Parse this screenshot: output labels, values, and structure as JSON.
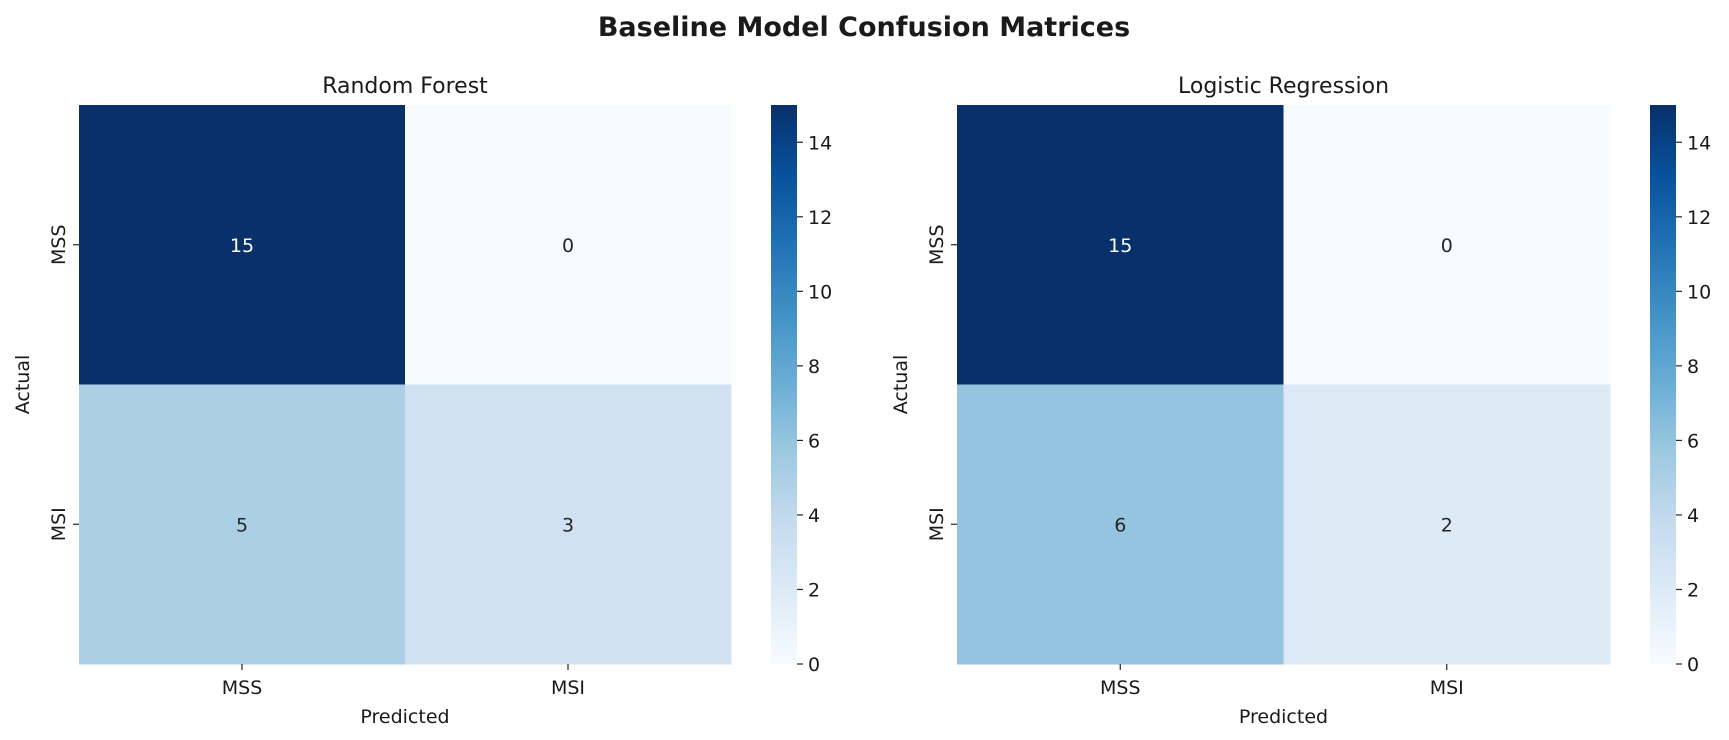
{
  "figure": {
    "title": "Baseline Model Confusion Matrices",
    "colormap": [
      "#f7fbff",
      "#deebf7",
      "#c6dbef",
      "#9ecae1",
      "#6baed6",
      "#4292c6",
      "#2171b5",
      "#08519c",
      "#08306b"
    ]
  },
  "chart_data": [
    {
      "type": "heatmap",
      "title": "Random Forest",
      "xlabel": "Predicted",
      "ylabel": "Actual",
      "x_categories": [
        "MSS",
        "MSI"
      ],
      "y_categories": [
        "MSS",
        "MSI"
      ],
      "values": [
        [
          15,
          0
        ],
        [
          5,
          3
        ]
      ],
      "color_range": [
        0,
        15
      ],
      "colorbar_ticks": [
        0,
        2,
        4,
        6,
        8,
        10,
        12,
        14
      ]
    },
    {
      "type": "heatmap",
      "title": "Logistic Regression",
      "xlabel": "Predicted",
      "ylabel": "Actual",
      "x_categories": [
        "MSS",
        "MSI"
      ],
      "y_categories": [
        "MSS",
        "MSI"
      ],
      "values": [
        [
          15,
          0
        ],
        [
          6,
          2
        ]
      ],
      "color_range": [
        0,
        15
      ],
      "colorbar_ticks": [
        0,
        2,
        4,
        6,
        8,
        10,
        12,
        14
      ]
    }
  ]
}
